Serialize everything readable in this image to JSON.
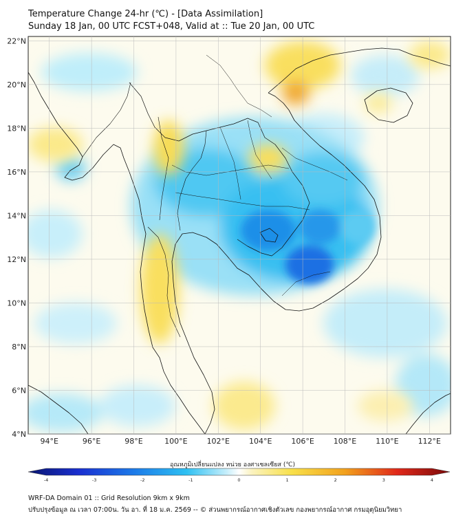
{
  "header": {
    "title_line1": "Temperature Change 24-hr (℃) - [Data Assimilation]",
    "title_line2": "Sunday 18 Jan, 00 UTC FCST+048, Valid at :: Tue 20 Jan, 00 UTC"
  },
  "map": {
    "lat_labels": [
      "22°N",
      "20°N",
      "18°N",
      "16°N",
      "14°N",
      "12°N",
      "10°N",
      "8°N",
      "6°N",
      "4°N"
    ],
    "lon_labels": [
      "94°E",
      "96°E",
      "98°E",
      "100°E",
      "102°E",
      "104°E",
      "106°E",
      "108°E",
      "110°E",
      "112°E"
    ],
    "lat_range": [
      4,
      22.2
    ],
    "lon_range": [
      93.0,
      113.0
    ]
  },
  "colorbar": {
    "label": "อุณหภูมิเปลี่ยนแปลง หน่วย องศาเซลเซียส (℃)",
    "ticks": [
      "-4",
      "-3",
      "-2",
      "-1",
      "0",
      "1",
      "2",
      "3",
      "4"
    ],
    "min": -4,
    "max": 4
  },
  "footer": {
    "line1": "WRF-DA Domain 01 :: Grid Resolution 9km x 9km",
    "line2": "ปรับปรุงข้อมูล ณ เวลา 07:00น. วัน อา. ที่ 18 ม.ค. 2569 -- © ส่วนพยากรณ์อากาศเชิงตัวเลข กองพยากรณ์อากาศ กรมอุตุนิยมวิทยา"
  },
  "colors": {
    "cold_strong": "#1a5fe0",
    "cold": "#29b6f0",
    "cold_light": "#a8e6f8",
    "neutral": "#fdfbee",
    "warm_light": "#fbf0a8",
    "warm": "#f8d648",
    "hot": "#e88a18",
    "border": "#111111",
    "grid": "#b9b9b9"
  }
}
